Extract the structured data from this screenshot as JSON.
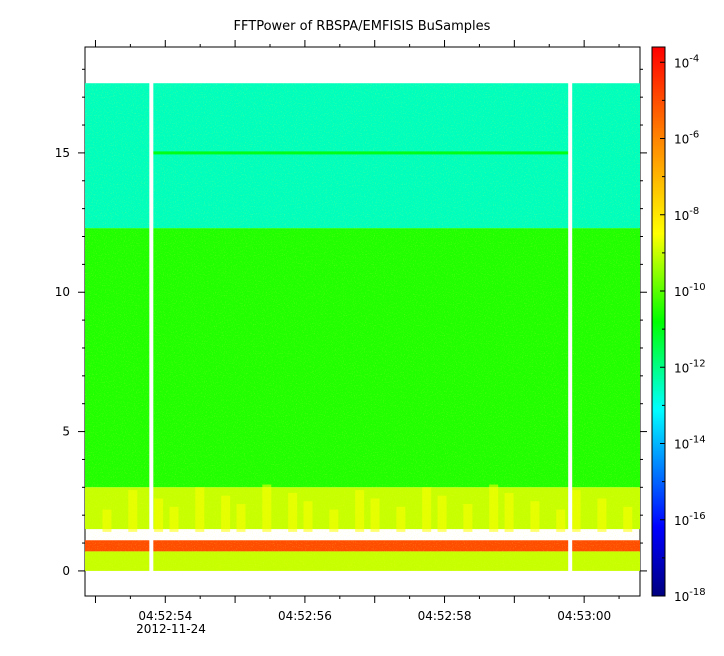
{
  "chart_data": {
    "type": "heatmap",
    "title": "FFTPower of RBSPA/EMFISIS  BuSamples",
    "xlabel": "",
    "ylabel": "",
    "x_ticks": [
      "04:52:54",
      "04:52:56",
      "04:52:58",
      "04:53:00"
    ],
    "x_tick_date": "2012-11-24",
    "y_ticks": [
      0,
      5,
      10,
      15
    ],
    "ylim": [
      -0.9,
      18.8
    ],
    "xlim_seconds_from_045253": [
      -0.15,
      7.8
    ],
    "data_coverage_y": [
      0,
      17.5
    ],
    "gaps_x_seconds_from_045253": [
      0.8,
      6.8
    ],
    "colorbar": {
      "scale": "log",
      "range": [
        "1e-18",
        "1e-3.6"
      ],
      "tick_base": "10",
      "tick_exponents": [
        "-4",
        "-6",
        "-8",
        "-10",
        "-12",
        "-14",
        "-16",
        "-18"
      ]
    },
    "bands": [
      {
        "y_range": [
          12.3,
          17.5
        ],
        "level": "10^-12.5"
      },
      {
        "y_range": [
          3.0,
          12.3
        ],
        "level": "10^-10.5"
      },
      {
        "y_range": [
          1.5,
          3.0
        ],
        "level": "10^-9 (bursty)"
      },
      {
        "y_range": [
          0.7,
          1.1
        ],
        "level": "10^-5"
      },
      {
        "y_range": [
          0,
          0.7
        ],
        "level": "10^-9"
      }
    ],
    "lines": [
      {
        "y": 15.0,
        "x_range_seconds": [
          0.8,
          6.8
        ],
        "level": "10^-11"
      }
    ]
  }
}
